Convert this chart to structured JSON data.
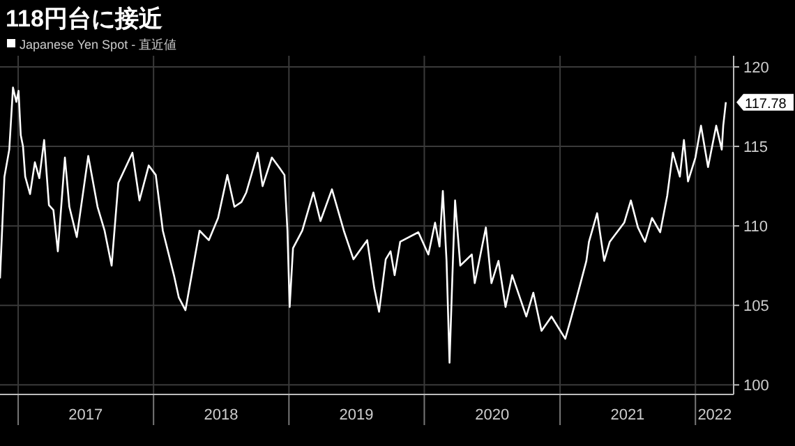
{
  "chart_data": {
    "type": "line",
    "title": "118円台に接近",
    "series": [
      {
        "name": "Japanese Yen Spot - 直近値",
        "color": "#ffffff",
        "x": [
          "2016-11-13",
          "2016-11-25",
          "2016-12-08",
          "2016-12-18",
          "2016-12-27",
          "2017-01-02",
          "2017-01-08",
          "2017-01-14",
          "2017-01-20",
          "2017-02-02",
          "2017-02-15",
          "2017-02-27",
          "2017-03-12",
          "2017-03-25",
          "2017-04-06",
          "2017-04-18",
          "2017-05-07",
          "2017-05-19",
          "2017-06-08",
          "2017-07-09",
          "2017-08-03",
          "2017-08-22",
          "2017-09-10",
          "2017-09-28",
          "2017-11-05",
          "2017-11-24",
          "2017-12-19",
          "2018-01-07",
          "2018-01-26",
          "2018-02-26",
          "2018-03-10",
          "2018-03-28",
          "2018-04-16",
          "2018-05-05",
          "2018-05-30",
          "2018-06-24",
          "2018-07-19",
          "2018-08-07",
          "2018-08-26",
          "2018-09-08",
          "2018-10-09",
          "2018-10-22",
          "2018-11-16",
          "2018-12-05",
          "2018-12-20",
          "2018-12-28",
          "2019-01-03",
          "2019-01-12",
          "2019-02-06",
          "2019-03-08",
          "2019-03-27",
          "2019-04-27",
          "2019-05-29",
          "2019-06-24",
          "2019-07-31",
          "2019-08-19",
          "2019-09-01",
          "2019-09-19",
          "2019-10-02",
          "2019-10-13",
          "2019-10-28",
          "2019-12-16",
          "2020-01-12",
          "2020-01-30",
          "2020-02-11",
          "2020-02-20",
          "2020-03-01",
          "2020-03-09",
          "2020-03-19",
          "2020-03-24",
          "2020-04-07",
          "2020-05-08",
          "2020-05-16",
          "2020-06-15",
          "2020-06-30",
          "2020-07-19",
          "2020-08-07",
          "2020-08-25",
          "2020-10-02",
          "2020-10-21",
          "2020-11-12",
          "2020-12-09",
          "2021-01-15",
          "2021-01-26",
          "2021-02-15",
          "2021-03-13",
          "2021-03-20",
          "2021-04-11",
          "2021-04-30",
          "2021-05-15",
          "2021-06-23",
          "2021-07-11",
          "2021-07-30",
          "2021-08-18",
          "2021-09-06",
          "2021-09-28",
          "2021-10-17",
          "2021-11-01",
          "2021-11-20",
          "2021-12-01",
          "2021-12-12",
          "2022-01-01",
          "2022-01-16",
          "2022-02-04",
          "2022-02-26",
          "2022-03-13",
          "2022-03-17",
          "2022-03-24"
        ],
        "values": [
          106.7,
          113.1,
          114.8,
          118.7,
          117.8,
          118.5,
          115.7,
          115,
          113.1,
          112,
          114,
          113,
          115.4,
          111.3,
          111,
          108.4,
          114.3,
          111.2,
          109.3,
          114.4,
          111.2,
          109.7,
          107.5,
          112.7,
          114.6,
          111.6,
          113.8,
          113.2,
          109.7,
          106.8,
          105.5,
          104.7,
          107.2,
          109.7,
          109.1,
          110.5,
          113.2,
          111.2,
          111.5,
          112.1,
          114.6,
          112.5,
          114.3,
          113.7,
          113.2,
          109.7,
          104.9,
          108.6,
          109.7,
          112.1,
          110.3,
          112.3,
          109.7,
          107.9,
          109.1,
          106.1,
          104.6,
          107.9,
          108.4,
          106.9,
          109,
          109.6,
          108.2,
          110.2,
          108.7,
          112.2,
          107.8,
          101.4,
          108.4,
          111.6,
          107.5,
          108.2,
          106.4,
          109.9,
          106.4,
          107.8,
          104.9,
          106.9,
          104.3,
          105.8,
          103.4,
          104.3,
          102.9,
          103.8,
          105.5,
          107.8,
          109,
          110.8,
          107.8,
          109,
          110.2,
          111.6,
          109.9,
          109,
          110.5,
          109.6,
          111.9,
          114.6,
          113.1,
          115.4,
          112.8,
          114.3,
          116.3,
          113.7,
          116.3,
          114.8,
          116.3,
          117.78
        ]
      }
    ],
    "xlim": [
      "2016-11-13",
      "2022-04-14"
    ],
    "xticks": [
      {
        "value": "2017-01-01",
        "label": null
      },
      {
        "value": "2017-07-02",
        "label": "2017"
      },
      {
        "value": "2018-01-01",
        "label": null
      },
      {
        "value": "2018-07-02",
        "label": "2018"
      },
      {
        "value": "2019-01-01",
        "label": null
      },
      {
        "value": "2019-07-02",
        "label": "2019"
      },
      {
        "value": "2020-01-01",
        "label": null
      },
      {
        "value": "2020-07-02",
        "label": "2020"
      },
      {
        "value": "2021-01-01",
        "label": null
      },
      {
        "value": "2021-07-02",
        "label": "2021"
      },
      {
        "value": "2022-01-01",
        "label": null
      },
      {
        "value": "2022-02-22",
        "label": "2022"
      }
    ],
    "ylim": [
      99.4,
      120.7
    ],
    "yticks": [
      100,
      105,
      110,
      115,
      120
    ],
    "annotations": [
      {
        "text": "117.78",
        "x": "2022-03-24",
        "y": 117.78
      }
    ],
    "grid": true,
    "legend": "top left"
  }
}
